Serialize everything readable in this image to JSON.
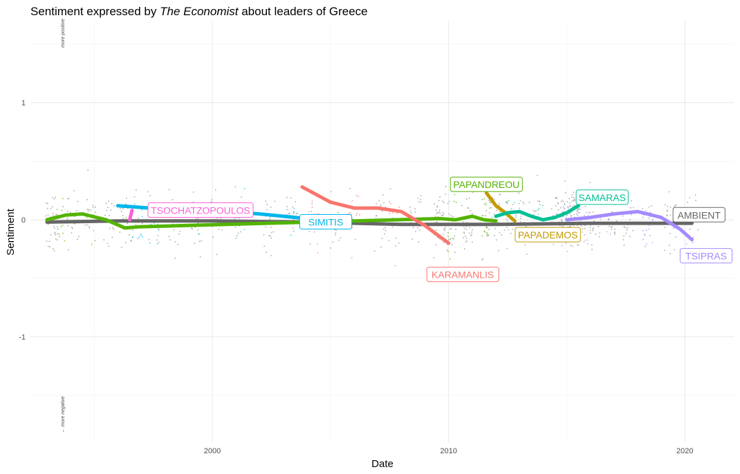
{
  "chart_data": {
    "type": "scatter",
    "title_prefix": "Sentiment expressed by ",
    "title_emph": "The Economist",
    "title_suffix": " about leaders of Greece",
    "xlabel": "Date",
    "ylabel": "Sentiment",
    "xlim": [
      1992.3,
      2022.1
    ],
    "ylim": [
      -1.9,
      1.7
    ],
    "x_ticks": [
      2000,
      2010,
      2020
    ],
    "y_ticks": [
      1,
      0,
      -1
    ],
    "grid": true,
    "hint_top": "more positive",
    "hint_bottom": "← more negative",
    "series": [
      {
        "name": "AMBIENT",
        "color": "#666666",
        "label_pos": [
          2020.6,
          0.04
        ],
        "x": [
          1993.0,
          1996.0,
          2000.0,
          2004.0,
          2008.0,
          2012.0,
          2016.0,
          2020.3
        ],
        "y": [
          -0.02,
          -0.01,
          -0.01,
          -0.02,
          -0.04,
          -0.04,
          -0.03,
          -0.03
        ]
      },
      {
        "name": "PAPANDREOU",
        "color": "#53b400",
        "label_pos": [
          2011.6,
          0.3
        ],
        "x": [
          1993.0,
          1993.8,
          1994.5,
          1995.5,
          1996.3,
          1996.9,
          2009.6,
          2010.3,
          2011.0,
          2011.5,
          2012.0
        ],
        "y": [
          0.0,
          0.04,
          0.05,
          0.0,
          -0.07,
          -0.06,
          0.01,
          0.0,
          0.03,
          0.0,
          -0.01
        ]
      },
      {
        "name": "TSOCHATZOPOULOS",
        "color": "#fb61d7",
        "label_pos": [
          1999.5,
          0.08
        ],
        "x": [
          1996.5,
          1996.6
        ],
        "y": [
          0.0,
          0.08
        ]
      },
      {
        "name": "SIMITIS",
        "color": "#00b6eb",
        "label_pos": [
          2004.8,
          -0.02
        ],
        "x": [
          1996.0,
          1998.0,
          2000.0,
          2002.0,
          2004.0
        ],
        "y": [
          0.12,
          0.09,
          0.08,
          0.05,
          0.01
        ]
      },
      {
        "name": "KARAMANLIS",
        "color": "#f8766d",
        "label_pos": [
          2010.6,
          -0.47
        ],
        "x": [
          2003.8,
          2005.0,
          2006.0,
          2007.0,
          2008.0,
          2009.0,
          2010.0
        ],
        "y": [
          0.28,
          0.15,
          0.1,
          0.1,
          0.07,
          -0.05,
          -0.2
        ]
      },
      {
        "name": "PAPADEMOS",
        "color": "#c49a00",
        "label_pos": [
          2014.2,
          -0.13
        ],
        "x": [
          2011.6,
          2012.0,
          2012.4,
          2012.8
        ],
        "y": [
          0.23,
          0.12,
          0.06,
          -0.01
        ]
      },
      {
        "name": "SAMARAS",
        "color": "#00c094",
        "label_pos": [
          2016.5,
          0.19
        ],
        "x": [
          2012.0,
          2012.5,
          2013.0,
          2013.5,
          2014.0,
          2014.5,
          2015.0,
          2015.5
        ],
        "y": [
          0.03,
          0.06,
          0.07,
          0.03,
          0.0,
          0.02,
          0.06,
          0.12
        ]
      },
      {
        "name": "TSIPRAS",
        "color": "#a58aff",
        "label_pos": [
          2020.9,
          -0.31
        ],
        "x": [
          2015.0,
          2016.0,
          2017.0,
          2018.0,
          2019.0,
          2019.8,
          2020.3
        ],
        "y": [
          0.0,
          0.02,
          0.05,
          0.07,
          0.02,
          -0.08,
          -0.17
        ]
      }
    ]
  }
}
